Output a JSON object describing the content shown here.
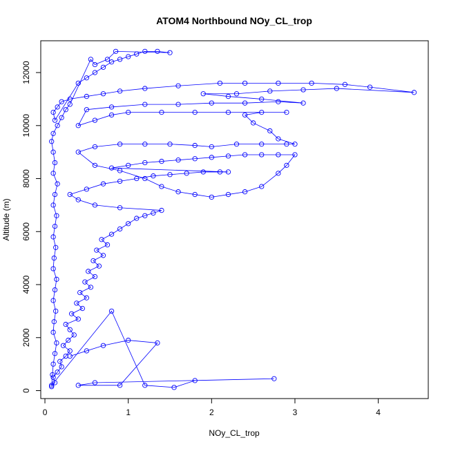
{
  "chart_data": {
    "type": "scatter",
    "title": "ATOM4 Northbound NOy_CL_trop",
    "xlabel": "NOy_CL_trop",
    "ylabel": "Altitude (m)",
    "xlim": [
      -0.05,
      4.6
    ],
    "ylim": [
      -300,
      13200
    ],
    "x_ticks": [
      0,
      1,
      2,
      3,
      4
    ],
    "y_ticks": [
      0,
      2000,
      4000,
      6000,
      8000,
      10000,
      12000
    ],
    "grid": false,
    "legend": "none",
    "marker": "open-circle",
    "connect_points": true,
    "color": "#0000ff",
    "series": [
      {
        "values_note_free": true,
        "points": [
          [
            0.08,
            150
          ],
          [
            0.12,
            300
          ],
          [
            0.1,
            500
          ],
          [
            0.15,
            700
          ],
          [
            0.2,
            900
          ],
          [
            0.18,
            1100
          ],
          [
            0.25,
            1300
          ],
          [
            0.3,
            1500
          ],
          [
            0.22,
            1700
          ],
          [
            0.28,
            1900
          ],
          [
            0.35,
            2100
          ],
          [
            0.3,
            2300
          ],
          [
            0.25,
            2500
          ],
          [
            0.4,
            2700
          ],
          [
            0.32,
            2900
          ],
          [
            0.45,
            3100
          ],
          [
            0.38,
            3300
          ],
          [
            0.5,
            3500
          ],
          [
            0.42,
            3700
          ],
          [
            0.55,
            3900
          ],
          [
            0.48,
            4100
          ],
          [
            0.6,
            4300
          ],
          [
            0.52,
            4500
          ],
          [
            0.65,
            4700
          ],
          [
            0.58,
            4900
          ],
          [
            0.7,
            5100
          ],
          [
            0.62,
            5300
          ],
          [
            0.75,
            5500
          ],
          [
            0.68,
            5700
          ],
          [
            0.8,
            5900
          ],
          [
            0.9,
            6100
          ],
          [
            1.0,
            6300
          ],
          [
            1.1,
            6500
          ],
          [
            1.2,
            6600
          ],
          [
            1.3,
            6700
          ],
          [
            1.4,
            6800
          ],
          [
            0.9,
            6900
          ],
          [
            0.6,
            7000
          ],
          [
            0.4,
            7200
          ],
          [
            0.3,
            7400
          ],
          [
            0.5,
            7600
          ],
          [
            0.7,
            7800
          ],
          [
            0.9,
            7900
          ],
          [
            1.1,
            8000
          ],
          [
            1.3,
            8100
          ],
          [
            1.5,
            8150
          ],
          [
            1.7,
            8200
          ],
          [
            1.9,
            8250
          ],
          [
            2.1,
            8250
          ],
          [
            2.2,
            8250
          ],
          [
            0.8,
            8400
          ],
          [
            1.0,
            8500
          ],
          [
            1.2,
            8600
          ],
          [
            1.4,
            8650
          ],
          [
            1.6,
            8700
          ],
          [
            1.8,
            8750
          ],
          [
            2.0,
            8800
          ],
          [
            2.2,
            8850
          ],
          [
            2.4,
            8900
          ],
          [
            2.6,
            8900
          ],
          [
            2.8,
            8900
          ],
          [
            3.0,
            8900
          ],
          [
            2.9,
            8500
          ],
          [
            2.8,
            8200
          ],
          [
            2.6,
            7700
          ],
          [
            2.4,
            7500
          ],
          [
            2.2,
            7400
          ],
          [
            2.0,
            7300
          ],
          [
            1.8,
            7400
          ],
          [
            1.6,
            7500
          ],
          [
            1.4,
            7700
          ],
          [
            1.2,
            8000
          ],
          [
            0.9,
            8300
          ],
          [
            0.6,
            8500
          ],
          [
            0.4,
            9000
          ],
          [
            0.6,
            9200
          ],
          [
            0.9,
            9300
          ],
          [
            1.2,
            9300
          ],
          [
            1.5,
            9300
          ],
          [
            1.8,
            9250
          ],
          [
            2.0,
            9200
          ],
          [
            2.3,
            9300
          ],
          [
            2.6,
            9300
          ],
          [
            2.9,
            9300
          ],
          [
            3.0,
            9300
          ],
          [
            2.8,
            9500
          ],
          [
            2.7,
            9800
          ],
          [
            2.5,
            10100
          ],
          [
            2.4,
            10400
          ],
          [
            2.6,
            10500
          ],
          [
            2.9,
            10500
          ],
          [
            2.2,
            10500
          ],
          [
            1.8,
            10500
          ],
          [
            1.4,
            10500
          ],
          [
            1.0,
            10500
          ],
          [
            0.8,
            10400
          ],
          [
            0.6,
            10200
          ],
          [
            0.4,
            10000
          ],
          [
            0.5,
            10600
          ],
          [
            0.8,
            10700
          ],
          [
            1.2,
            10800
          ],
          [
            1.6,
            10800
          ],
          [
            2.0,
            10850
          ],
          [
            2.4,
            10850
          ],
          [
            2.8,
            10900
          ],
          [
            3.1,
            10850
          ],
          [
            2.6,
            11000
          ],
          [
            2.2,
            11100
          ],
          [
            1.9,
            11200
          ],
          [
            2.3,
            11200
          ],
          [
            2.7,
            11300
          ],
          [
            3.1,
            11350
          ],
          [
            3.5,
            11400
          ],
          [
            4.43,
            11250
          ],
          [
            3.9,
            11450
          ],
          [
            3.6,
            11550
          ],
          [
            3.2,
            11600
          ],
          [
            2.8,
            11600
          ],
          [
            2.4,
            11600
          ],
          [
            2.1,
            11600
          ],
          [
            1.6,
            11500
          ],
          [
            1.2,
            11400
          ],
          [
            0.9,
            11300
          ],
          [
            0.7,
            11200
          ],
          [
            0.5,
            11100
          ],
          [
            0.3,
            11000
          ],
          [
            0.2,
            10900
          ],
          [
            0.15,
            10700
          ],
          [
            0.1,
            10500
          ],
          [
            0.12,
            10200
          ],
          [
            0.4,
            11600
          ],
          [
            0.5,
            11800
          ],
          [
            0.6,
            12000
          ],
          [
            0.7,
            12200
          ],
          [
            0.8,
            12400
          ],
          [
            0.9,
            12500
          ],
          [
            1.0,
            12600
          ],
          [
            1.1,
            12700
          ],
          [
            1.2,
            12800
          ],
          [
            1.35,
            12800
          ],
          [
            1.5,
            12750
          ],
          [
            0.85,
            12800
          ],
          [
            0.75,
            12500
          ],
          [
            0.6,
            12300
          ],
          [
            0.55,
            12500
          ],
          [
            0.3,
            10800
          ],
          [
            0.25,
            10600
          ],
          [
            0.2,
            10300
          ],
          [
            0.15,
            10000
          ],
          [
            0.1,
            9700
          ],
          [
            0.08,
            9400
          ],
          [
            0.1,
            9000
          ],
          [
            0.12,
            8600
          ],
          [
            0.1,
            8200
          ],
          [
            0.15,
            7800
          ],
          [
            0.12,
            7400
          ],
          [
            0.1,
            7000
          ],
          [
            0.14,
            6600
          ],
          [
            0.12,
            6200
          ],
          [
            0.1,
            5800
          ],
          [
            0.13,
            5400
          ],
          [
            0.11,
            5000
          ],
          [
            0.1,
            4600
          ],
          [
            0.14,
            4200
          ],
          [
            0.12,
            3800
          ],
          [
            0.1,
            3400
          ],
          [
            0.13,
            3000
          ],
          [
            0.11,
            2600
          ],
          [
            0.1,
            2200
          ],
          [
            0.14,
            1800
          ],
          [
            0.12,
            1400
          ],
          [
            0.1,
            1000
          ],
          [
            0.09,
            600
          ],
          [
            0.08,
            200
          ],
          [
            0.8,
            3000
          ],
          [
            1.2,
            200
          ],
          [
            1.55,
            120
          ],
          [
            1.8,
            380
          ],
          [
            2.75,
            450
          ],
          [
            0.6,
            300
          ],
          [
            0.4,
            200
          ],
          [
            0.9,
            200
          ],
          [
            1.35,
            1800
          ],
          [
            1.0,
            1900
          ],
          [
            0.7,
            1700
          ],
          [
            0.5,
            1500
          ],
          [
            0.3,
            1300
          ]
        ]
      }
    ]
  }
}
